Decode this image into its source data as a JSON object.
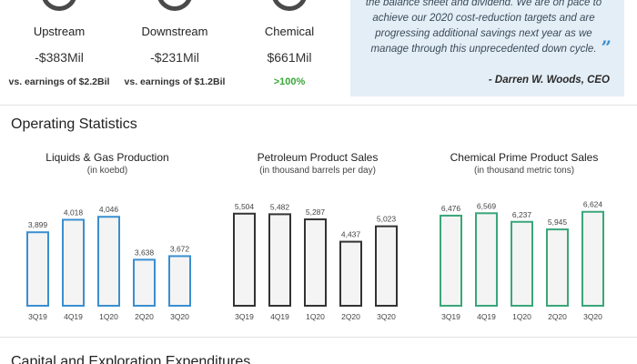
{
  "segments": [
    {
      "name": "Upstream",
      "value": "-$383Mil",
      "note": "vs. earnings of $2.2Bil"
    },
    {
      "name": "Downstream",
      "value": "-$231Mil",
      "note": "vs. earnings of $1.2Bil"
    },
    {
      "name": "Chemical",
      "value": "$661Mil",
      "note": ">100%"
    }
  ],
  "quote": {
    "text": "the balance sheet and dividend. We are on pace to achieve our 2020 cost-reduction targets and are progressing additional savings next year as we manage through this unprecedented down cycle.",
    "close_mark": "”",
    "author": "- Darren W. Woods, CEO"
  },
  "sections": {
    "operating": "Operating Statistics",
    "capital": "Capital and Exploration Expenditures"
  },
  "colors": {
    "blue": "#3a8fd0",
    "black": "#333333",
    "green": "#3aa67a",
    "bar_fill": "#f4f4f4"
  },
  "chart_data": [
    {
      "type": "bar",
      "title": "Liquids & Gas Production",
      "subtitle": "(in koebd)",
      "categories": [
        "3Q19",
        "4Q19",
        "1Q20",
        "2Q20",
        "3Q20"
      ],
      "values": [
        3899,
        4018,
        4046,
        3638,
        3672
      ],
      "labels": [
        "3,899",
        "4,018",
        "4,046",
        "3,638",
        "3,672"
      ],
      "ylim": [
        3200,
        4100
      ],
      "color": "#3a8fd0"
    },
    {
      "type": "bar",
      "title": "Petroleum Product Sales",
      "subtitle": "(in thousand barrels per day)",
      "categories": [
        "3Q19",
        "4Q19",
        "1Q20",
        "2Q20",
        "3Q20"
      ],
      "values": [
        5504,
        5482,
        5287,
        4437,
        5023
      ],
      "labels": [
        "5,504",
        "5,482",
        "5,287",
        "4,437",
        "5,023"
      ],
      "ylim": [
        2000,
        5600
      ],
      "color": "#333333"
    },
    {
      "type": "bar",
      "title": "Chemical Prime Product Sales",
      "subtitle": "(in thousand metric tons)",
      "categories": [
        "3Q19",
        "4Q19",
        "1Q20",
        "2Q20",
        "3Q20"
      ],
      "values": [
        6476,
        6569,
        6237,
        5945,
        6624
      ],
      "labels": [
        "6,476",
        "6,569",
        "6,237",
        "5,945",
        "6,624"
      ],
      "ylim": [
        3000,
        6650
      ],
      "color": "#3aa67a"
    }
  ]
}
